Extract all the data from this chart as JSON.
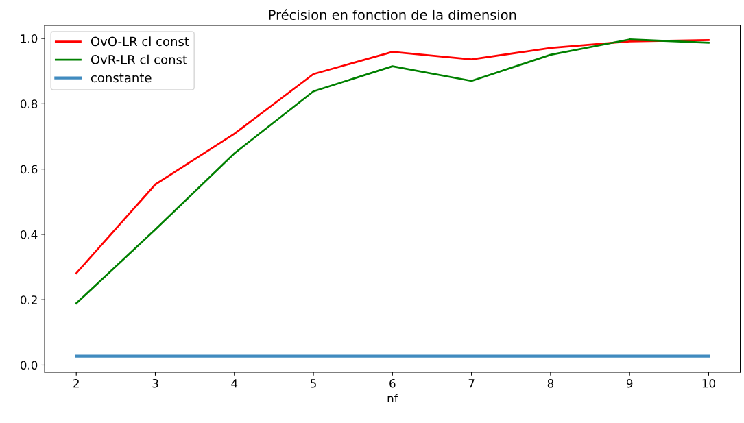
{
  "chart_data": {
    "type": "line",
    "title": "Précision en fonction de la dimension",
    "xlabel": "nf",
    "x": [
      2,
      3,
      4,
      5,
      6,
      7,
      8,
      9,
      10
    ],
    "series": [
      {
        "name": "OvO-LR cl const",
        "color": "#ff0000",
        "values": [
          0.281,
          0.553,
          0.708,
          0.891,
          0.959,
          0.936,
          0.971,
          0.991,
          0.995
        ]
      },
      {
        "name": "OvR-LR cl const",
        "color": "#008000",
        "values": [
          0.189,
          0.415,
          0.648,
          0.838,
          0.915,
          0.87,
          0.95,
          0.997,
          0.987
        ]
      },
      {
        "name": "constante",
        "color": "#1f77b4",
        "values": [
          0.027,
          0.027,
          0.027,
          0.027,
          0.027,
          0.027,
          0.027,
          0.027,
          0.027
        ]
      }
    ],
    "xlim": [
      1.6,
      10.4
    ],
    "xticks": [
      2,
      3,
      4,
      5,
      6,
      7,
      8,
      9,
      10
    ],
    "ylim": [
      -0.022,
      1.04
    ],
    "yticks": [
      {
        "value": 0,
        "label": "0.0"
      },
      0.2,
      0.4,
      0.6,
      0.8,
      {
        "value": 1,
        "label": "1.0"
      }
    ],
    "legend": "top left",
    "grid": false,
    "marker": "none",
    "line_style": "solid"
  }
}
